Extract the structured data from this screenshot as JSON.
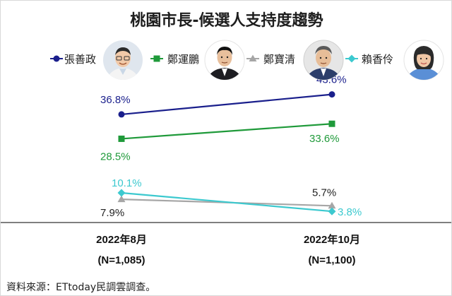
{
  "title": "桃園市長-候選人支持度趨勢",
  "source": "資料來源：ETtoday民調雲調查。",
  "chart_data": {
    "type": "line",
    "title": "桃園市長-候選人支持度趨勢",
    "categories": [
      "2022年8月",
      "2022年10月"
    ],
    "category_notes": [
      "(N=1,085)",
      "(N=1,100)"
    ],
    "value_suffix": "%",
    "ylim": [
      0,
      50
    ],
    "grid": false,
    "legend": "top",
    "series": [
      {
        "name": "張善政",
        "values": [
          36.8,
          43.6
        ],
        "labels": [
          "36.8%",
          "43.6%"
        ],
        "color": "#1a1f8c",
        "marker": "circle",
        "icon": "person-avatar-male-glasses"
      },
      {
        "name": "鄭運鵬",
        "values": [
          28.5,
          33.6
        ],
        "labels": [
          "28.5%",
          "33.6%"
        ],
        "color": "#1f9a3a",
        "marker": "square",
        "icon": "person-avatar-male-dark-suit"
      },
      {
        "name": "鄭寶清",
        "values": [
          7.9,
          5.7
        ],
        "labels": [
          "7.9%",
          "5.7%"
        ],
        "color": "#a6a6a6",
        "marker": "triangle",
        "icon": "person-avatar-male-grey-hair"
      },
      {
        "name": "賴香伶",
        "values": [
          10.1,
          3.8
        ],
        "labels": [
          "10.1%",
          "3.8%"
        ],
        "color": "#3cc9cf",
        "marker": "diamond",
        "icon": "person-avatar-female"
      }
    ]
  }
}
